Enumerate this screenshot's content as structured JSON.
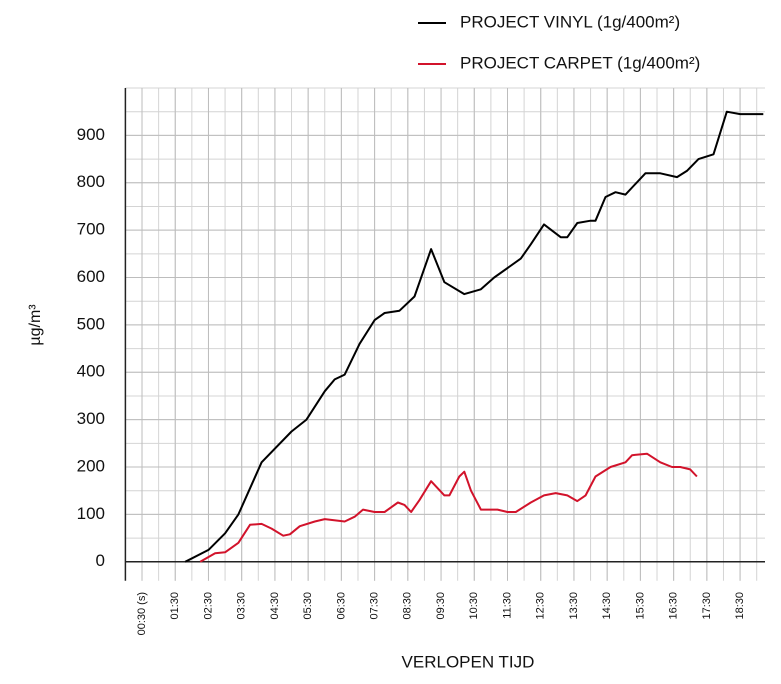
{
  "chart_data": {
    "type": "line",
    "x_label": "VERLOPEN TIJD",
    "y_label": "µg/m³",
    "xlim": [
      0,
      19.25
    ],
    "ylim": [
      -40,
      1000
    ],
    "xticks": [
      {
        "value": 0.5,
        "label": "00:30 (s)"
      },
      {
        "value": 1.5,
        "label": "01:30"
      },
      {
        "value": 2.5,
        "label": "02:30"
      },
      {
        "value": 3.5,
        "label": "03:30"
      },
      {
        "value": 4.5,
        "label": "04:30"
      },
      {
        "value": 5.5,
        "label": "05:30"
      },
      {
        "value": 6.5,
        "label": "06:30"
      },
      {
        "value": 7.5,
        "label": "07:30"
      },
      {
        "value": 8.5,
        "label": "08:30"
      },
      {
        "value": 9.5,
        "label": "09:30"
      },
      {
        "value": 10.5,
        "label": "10:30"
      },
      {
        "value": 11.5,
        "label": "11:30"
      },
      {
        "value": 12.5,
        "label": "12:30"
      },
      {
        "value": 13.5,
        "label": "13:30"
      },
      {
        "value": 14.5,
        "label": "14:30"
      },
      {
        "value": 15.5,
        "label": "15:30"
      },
      {
        "value": 16.5,
        "label": "16:30"
      },
      {
        "value": 17.5,
        "label": "17:30"
      },
      {
        "value": 18.5,
        "label": "18:30"
      }
    ],
    "yticks": [
      0,
      100,
      200,
      300,
      400,
      500,
      600,
      700,
      800,
      900
    ],
    "grid": true,
    "legend": "top-right",
    "series": [
      {
        "name": "PROJECT VINYL (1g/400m²)",
        "color": "#000000",
        "x": [
          1.8,
          2.5,
          3.0,
          3.4,
          4.1,
          5.0,
          5.45,
          6.0,
          6.3,
          6.6,
          7.05,
          7.5,
          7.8,
          8.25,
          8.7,
          9.2,
          9.6,
          10.2,
          10.7,
          11.1,
          11.9,
          12.2,
          12.6,
          13.1,
          13.3,
          13.6,
          14.0,
          14.15,
          14.45,
          14.75,
          15.05,
          15.25,
          15.65,
          16.1,
          16.6,
          16.9,
          17.25,
          17.7,
          18.1,
          18.5,
          19.2
        ],
        "values": [
          0,
          25,
          60,
          100,
          210,
          275,
          300,
          360,
          385,
          395,
          460,
          510,
          525,
          530,
          560,
          660,
          590,
          565,
          575,
          600,
          640,
          670,
          712,
          685,
          685,
          715,
          720,
          720,
          770,
          780,
          775,
          790,
          820,
          820,
          812,
          825,
          850,
          860,
          950,
          945,
          945
        ]
      },
      {
        "name": "PROJECT CARPET (1g/400m²)",
        "color": "#d2132b",
        "x": [
          2.25,
          2.7,
          3.0,
          3.4,
          3.75,
          4.1,
          4.4,
          4.75,
          4.95,
          5.25,
          5.7,
          6.0,
          6.6,
          6.9,
          7.15,
          7.5,
          7.8,
          8.2,
          8.4,
          8.6,
          8.85,
          9.2,
          9.6,
          9.75,
          10.05,
          10.2,
          10.4,
          10.7,
          11.2,
          11.5,
          11.75,
          12.2,
          12.6,
          12.95,
          13.3,
          13.6,
          13.85,
          14.15,
          14.6,
          15.05,
          15.25,
          15.7,
          16.1,
          16.45,
          16.7,
          17.0,
          17.2
        ],
        "values": [
          0,
          18,
          20,
          40,
          78,
          80,
          70,
          55,
          58,
          75,
          85,
          90,
          85,
          95,
          110,
          105,
          105,
          125,
          120,
          105,
          130,
          170,
          140,
          140,
          180,
          190,
          150,
          110,
          110,
          105,
          105,
          125,
          140,
          145,
          140,
          128,
          140,
          180,
          200,
          210,
          225,
          228,
          210,
          200,
          200,
          195,
          180
        ]
      }
    ]
  }
}
